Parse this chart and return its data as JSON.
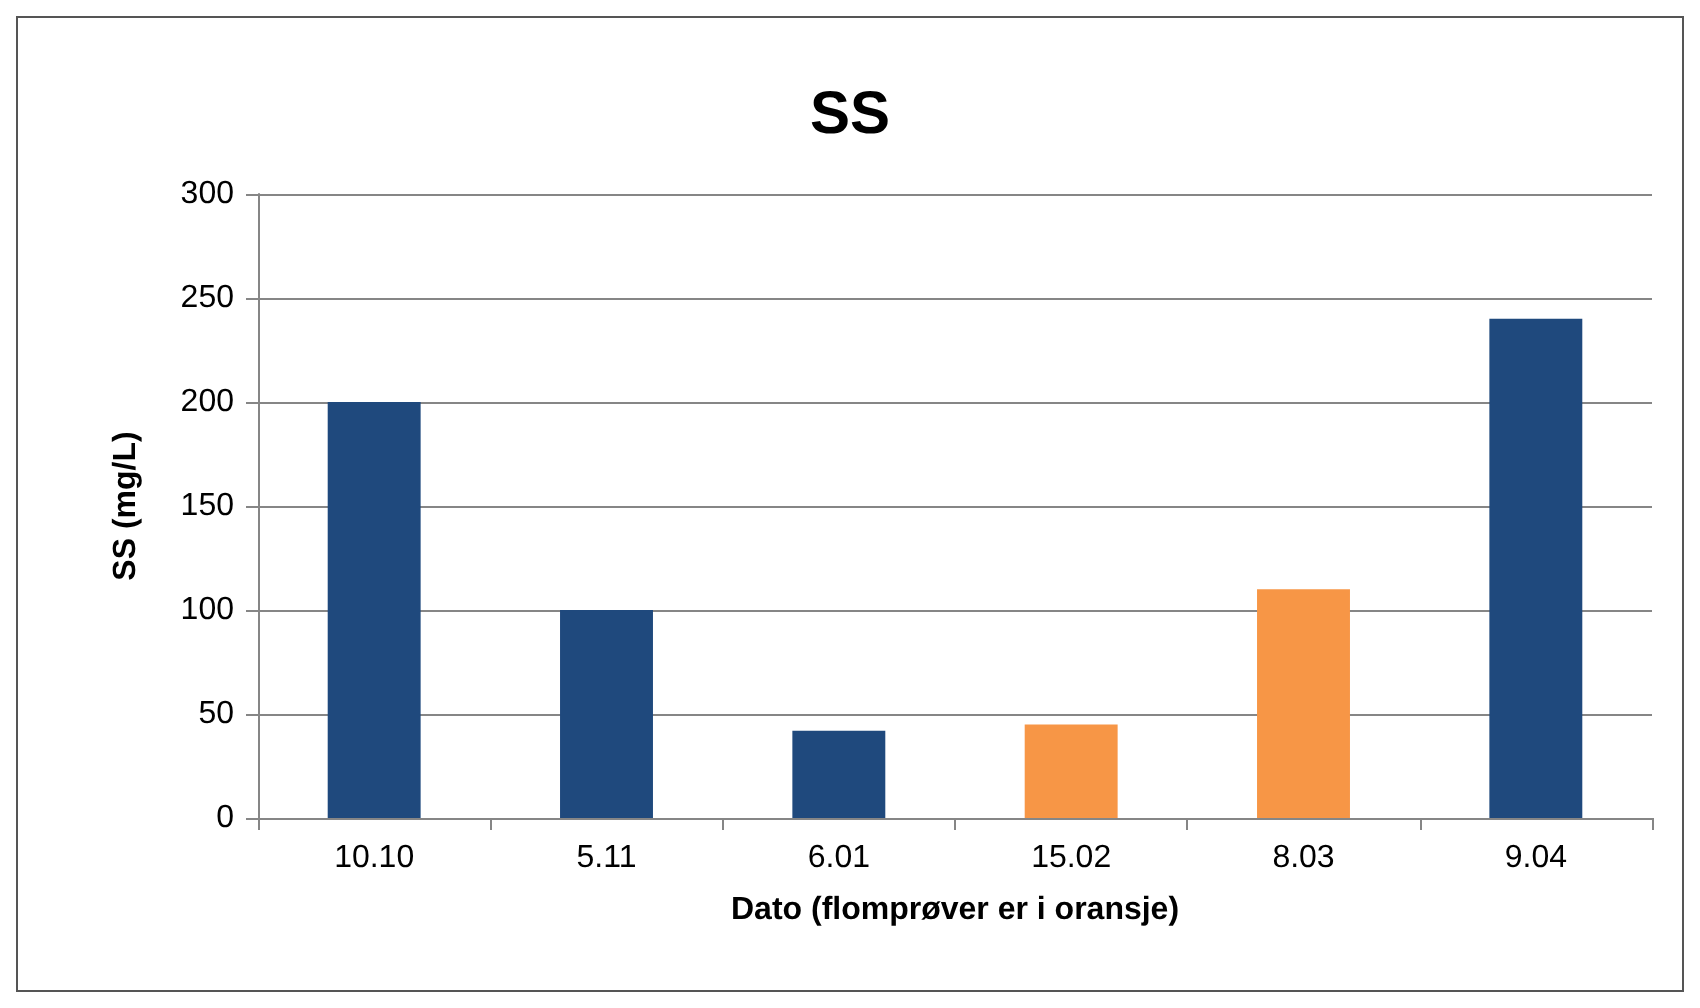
{
  "chart_data": {
    "type": "bar",
    "title": "SS",
    "xlabel": "Dato (flomprøver er i oransje)",
    "ylabel": "SS (mg/L)",
    "categories": [
      "10.10",
      "5.11",
      "6.01",
      "15.02",
      "8.03",
      "9.04"
    ],
    "values": [
      200,
      100,
      42,
      45,
      110,
      240
    ],
    "colors": [
      "#1f497d",
      "#1f497d",
      "#1f497d",
      "#f79646",
      "#f79646",
      "#1f497d"
    ],
    "ylim": [
      0,
      300
    ],
    "yticks": [
      0,
      50,
      100,
      150,
      200,
      250,
      300
    ],
    "grid": "y"
  }
}
